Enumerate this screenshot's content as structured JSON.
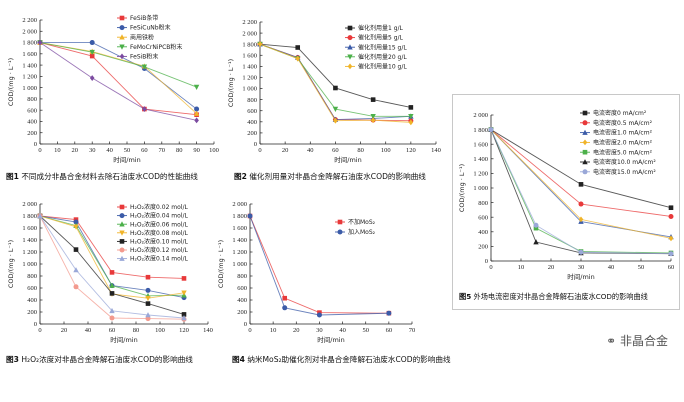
{
  "figures": [
    {
      "id": "fig1",
      "caption_num": "图1",
      "caption": "不同成分非晶合金材料去除石油废水COD的性能曲线",
      "xlabel": "时间/min",
      "ylabel": "COD/(mg · L⁻¹)"
    },
    {
      "id": "fig2",
      "caption_num": "图2",
      "caption": "催化剂用量对非晶合金降解石油废水COD的影响曲线",
      "xlabel": "时间/min",
      "ylabel": "COD/(mg · L⁻¹)"
    },
    {
      "id": "fig3",
      "caption_num": "图3",
      "caption": "H₂O₂浓度对非晶合金降解石油废水COD的影响曲线",
      "xlabel": "时间/min",
      "ylabel": "COD/(mg · L⁻¹)"
    },
    {
      "id": "fig4",
      "caption_num": "图4",
      "caption": "纳米MoS₂助催化剂对非晶合金降解石油废水COD的影响曲线",
      "xlabel": "时间/min",
      "ylabel": "COD/(mg · L⁻¹)"
    },
    {
      "id": "fig5",
      "caption_num": "图5",
      "caption": "外场电流密度对非晶合金降解石油废水COD的影响曲线",
      "xlabel": "时间/min",
      "ylabel": "COD/(mg · L⁻¹)"
    }
  ],
  "watermark": "非晶合金",
  "chart_data": [
    {
      "type": "line",
      "x": [
        0,
        30,
        60,
        90
      ],
      "xticks": [
        0,
        10,
        20,
        30,
        40,
        50,
        60,
        70,
        80,
        90,
        100
      ],
      "yticks": [
        0,
        200,
        400,
        600,
        800,
        1000,
        1200,
        1400,
        1600,
        1800,
        2000,
        2200
      ],
      "xlim": [
        0,
        100
      ],
      "ylim": [
        0,
        2200
      ],
      "legend_position": "top-left",
      "series": [
        {
          "name": "FeSiB条带",
          "color": "#e8393a",
          "marker": "square",
          "values": [
            1800,
            1560,
            620,
            520
          ]
        },
        {
          "name": "FeSiCuNb粉末",
          "color": "#3b5ba8",
          "marker": "circle",
          "values": [
            1800,
            1800,
            1340,
            620
          ]
        },
        {
          "name": "商用铁粉",
          "color": "#f0b429",
          "marker": "triangle",
          "values": [
            1800,
            1640,
            1380,
            540
          ]
        },
        {
          "name": "FeMoCrNiPCB粉末",
          "color": "#4cb04a",
          "marker": "triangle-down",
          "values": [
            1800,
            1630,
            1370,
            1010
          ]
        },
        {
          "name": "FeSiB粉末",
          "color": "#7b4aa0",
          "marker": "diamond",
          "values": [
            1800,
            1170,
            620,
            420
          ]
        }
      ]
    },
    {
      "type": "line",
      "x": [
        0,
        30,
        60,
        90,
        120
      ],
      "xticks": [
        0,
        20,
        40,
        60,
        80,
        100,
        120,
        140
      ],
      "yticks": [
        0,
        200,
        400,
        600,
        800,
        1000,
        1200,
        1400,
        1600,
        1800,
        2000,
        2200
      ],
      "xlim": [
        0,
        140
      ],
      "ylim": [
        0,
        2200
      ],
      "legend_position": "top-right",
      "series": [
        {
          "name": "催化剂用量1 g/L",
          "color": "#222222",
          "marker": "square",
          "values": [
            1800,
            1740,
            1010,
            800,
            660
          ]
        },
        {
          "name": "催化剂用量5 g/L",
          "color": "#e8393a",
          "marker": "circle",
          "values": [
            1800,
            1560,
            440,
            430,
            420
          ]
        },
        {
          "name": "催化剂用量15 g/L",
          "color": "#3b5ba8",
          "marker": "triangle",
          "values": [
            1800,
            1560,
            440,
            460,
            500
          ]
        },
        {
          "name": "催化剂用量20 g/L",
          "color": "#4cb04a",
          "marker": "triangle-down",
          "values": [
            1800,
            1540,
            630,
            500,
            500
          ]
        },
        {
          "name": "催化剂用量10 g/L",
          "color": "#f0b429",
          "marker": "diamond",
          "values": [
            1800,
            1540,
            420,
            430,
            390
          ]
        }
      ]
    },
    {
      "type": "line",
      "x": [
        0,
        30,
        60,
        90,
        120
      ],
      "xticks": [
        0,
        20,
        40,
        60,
        80,
        100,
        120,
        140
      ],
      "yticks": [
        0,
        200,
        400,
        600,
        800,
        1000,
        1200,
        1400,
        1600,
        1800,
        2000
      ],
      "xlim": [
        0,
        140
      ],
      "ylim": [
        0,
        2000
      ],
      "legend_position": "top-right",
      "series": [
        {
          "name": "H₂O₂浓度0.02 mol/L",
          "color": "#e8393a",
          "marker": "square",
          "values": [
            1800,
            1740,
            860,
            780,
            760
          ]
        },
        {
          "name": "H₂O₂浓度0.04 mol/L",
          "color": "#3b5ba8",
          "marker": "circle",
          "values": [
            1800,
            1700,
            640,
            560,
            440
          ]
        },
        {
          "name": "H₂O₂浓度0.06 mol/L",
          "color": "#4cb04a",
          "marker": "triangle",
          "values": [
            1800,
            1640,
            640,
            470,
            480
          ]
        },
        {
          "name": "H₂O₂浓度0.08 mol/L",
          "color": "#f0b429",
          "marker": "triangle-down",
          "values": [
            1800,
            1620,
            500,
            430,
            520
          ]
        },
        {
          "name": "H₂O₂浓度0.10 mol/L",
          "color": "#222222",
          "marker": "square",
          "values": [
            1800,
            1240,
            510,
            340,
            160
          ]
        },
        {
          "name": "H₂O₂浓度0.12 mol/L",
          "color": "#f39a8e",
          "marker": "circle",
          "values": [
            1800,
            620,
            100,
            90,
            80
          ]
        },
        {
          "name": "H₂O₂浓度0.14 mol/L",
          "color": "#9aa8d8",
          "marker": "triangle",
          "values": [
            1800,
            900,
            220,
            150,
            100
          ]
        }
      ]
    },
    {
      "type": "line",
      "x": [
        0,
        15,
        30,
        60
      ],
      "xticks": [
        0,
        10,
        20,
        30,
        40,
        50,
        60,
        70
      ],
      "yticks": [
        0,
        200,
        400,
        600,
        800,
        1000,
        1200,
        1400,
        1600,
        1800,
        2000
      ],
      "xlim": [
        0,
        70
      ],
      "ylim": [
        0,
        2000
      ],
      "legend_position": "top-right",
      "series": [
        {
          "name": "不加MoS₂",
          "color": "#e8393a",
          "marker": "square",
          "values": [
            1800,
            430,
            190,
            180
          ]
        },
        {
          "name": "加入MoS₂",
          "color": "#3b5ba8",
          "marker": "circle",
          "values": [
            1800,
            270,
            150,
            180
          ]
        }
      ]
    },
    {
      "type": "line",
      "x": [
        0,
        15,
        30,
        60
      ],
      "xticks": [
        0,
        10,
        20,
        30,
        40,
        50,
        60
      ],
      "yticks": [
        0,
        200,
        400,
        600,
        800,
        1000,
        1200,
        1400,
        1600,
        1800,
        2000
      ],
      "xlim": [
        0,
        60
      ],
      "ylim": [
        0,
        2000
      ],
      "legend_position": "top-right",
      "series": [
        {
          "name": "电流密度0 mA/cm²",
          "color": "#222222",
          "marker": "square",
          "values": [
            1800,
            null,
            1050,
            730
          ]
        },
        {
          "name": "电流密度0.5 mA/cm²",
          "color": "#e8393a",
          "marker": "circle",
          "values": [
            1800,
            null,
            780,
            610
          ]
        },
        {
          "name": "电流密度1.0 mA/cm²",
          "color": "#3b5ba8",
          "marker": "triangle",
          "values": [
            1800,
            null,
            540,
            330
          ]
        },
        {
          "name": "电流密度2.0 mA/cm²",
          "color": "#f0b429",
          "marker": "diamond",
          "values": [
            1800,
            null,
            570,
            310
          ]
        },
        {
          "name": "电流密度5.0 mA/cm²",
          "color": "#4cb04a",
          "marker": "square",
          "values": [
            1800,
            450,
            130,
            110
          ]
        },
        {
          "name": "电流密度10.0 mA/cm²",
          "color": "#222222",
          "marker": "triangle",
          "values": [
            1800,
            260,
            110,
            100
          ]
        },
        {
          "name": "电流密度15.0 mA/cm²",
          "color": "#9aa8d8",
          "marker": "circle",
          "values": [
            1800,
            490,
            120,
            100
          ]
        }
      ]
    }
  ]
}
